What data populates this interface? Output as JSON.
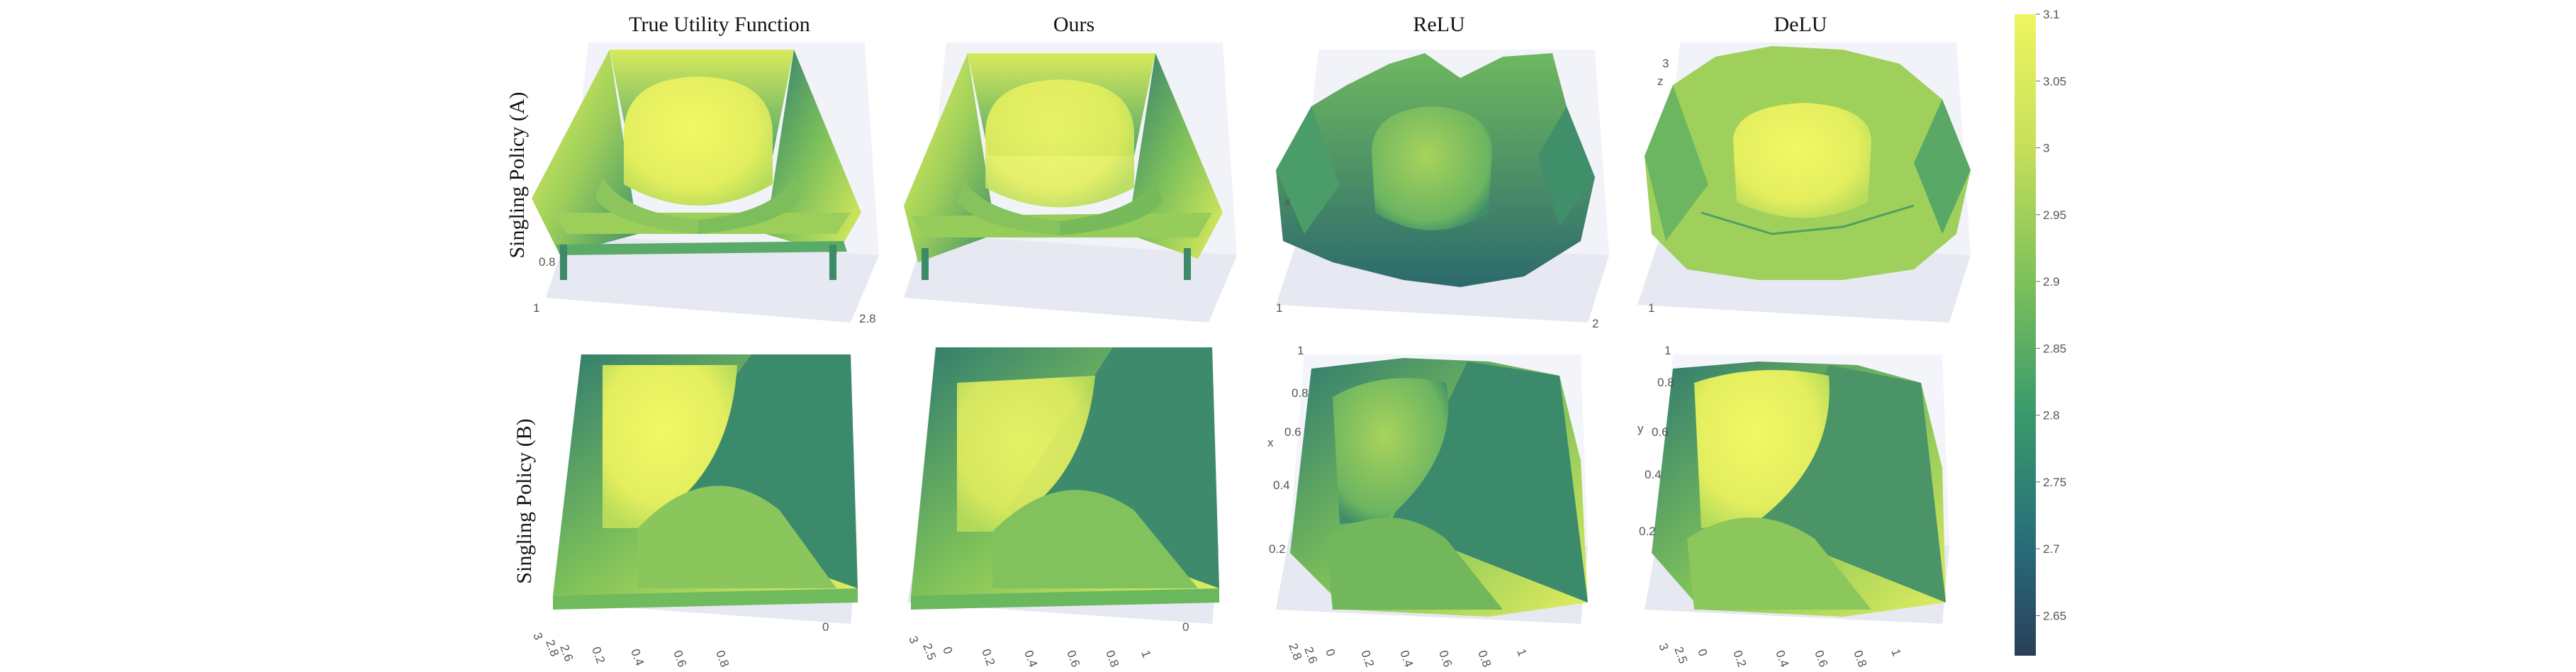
{
  "columns": [
    "True Utility Function",
    "Ours",
    "ReLU",
    "DeLU"
  ],
  "rows": [
    "Singling Policy (A)",
    "Singling Policy (B)"
  ],
  "colormap": {
    "name": "viridis-like",
    "stops": [
      "#2a3f5a",
      "#276f7a",
      "#3a9a6a",
      "#7cc05a",
      "#c8e05a",
      "#eef560"
    ],
    "min": 2.62,
    "max": 3.1,
    "ticks": [
      "3.1",
      "3.05",
      "3",
      "2.95",
      "2.9",
      "2.85",
      "2.8",
      "2.75",
      "2.7",
      "2.65"
    ]
  },
  "axis_labels": {
    "row_a": [
      {
        "panel": 0,
        "items": [
          "0.8",
          "1",
          "2.8"
        ]
      },
      {
        "panel": 2,
        "items": [
          "x",
          "1",
          "2"
        ]
      },
      {
        "panel": 3,
        "items": [
          "3",
          "z",
          "1"
        ]
      }
    ],
    "row_b": [
      {
        "panel": 0,
        "items": [
          "3",
          "2.8",
          "2.6",
          "0.2",
          "0.4",
          "0.6",
          "0.8",
          "0"
        ]
      },
      {
        "panel": 1,
        "items": [
          "3",
          "2.5",
          "0",
          "0.2",
          "0.4",
          "0.6",
          "0.8",
          "1",
          "0"
        ]
      },
      {
        "panel": 2,
        "items": [
          "1",
          "0.8",
          "0.6",
          "x",
          "0.4",
          "0.2",
          "2.8",
          "2.6",
          "0",
          "0.2",
          "0.4",
          "0.6",
          "0.8",
          "1"
        ]
      },
      {
        "panel": 3,
        "items": [
          "1",
          "0.8",
          "y",
          "0.6",
          "0.4",
          "0.2",
          "3",
          "2.5",
          "0",
          "0.2",
          "0.4",
          "0.6",
          "0.8",
          "1"
        ]
      }
    ]
  }
}
